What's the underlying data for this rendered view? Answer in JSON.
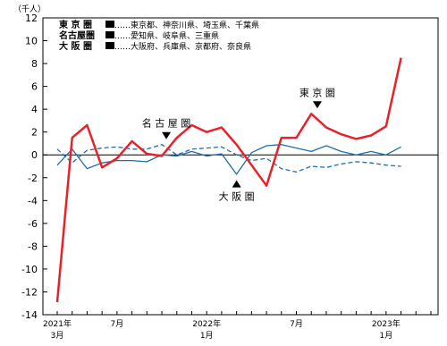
{
  "chart_data": {
    "type": "line",
    "unit_label": "（千人）",
    "x": [
      "2021-03",
      "2021-04",
      "2021-05",
      "2021-06",
      "2021-07",
      "2021-08",
      "2021-09",
      "2021-10",
      "2021-11",
      "2021-12",
      "2022-01",
      "2022-02",
      "2022-03",
      "2022-04",
      "2022-05",
      "2022-06",
      "2022-07",
      "2022-08",
      "2022-09",
      "2022-10",
      "2022-11",
      "2022-12",
      "2023-01",
      "2023-02",
      "2023-03",
      "2023-04"
    ],
    "x_ticks": [
      {
        "index": 0,
        "line1": "2021年",
        "line2": "3月"
      },
      {
        "index": 4,
        "line1": "7月",
        "line2": ""
      },
      {
        "index": 10,
        "line1": "2022年",
        "line2": "1月"
      },
      {
        "index": 16,
        "line1": "7月",
        "line2": ""
      },
      {
        "index": 22,
        "line1": "2023年",
        "line2": "1月"
      }
    ],
    "ylim": [
      -14,
      12
    ],
    "yticks": [
      12,
      10,
      8,
      6,
      4,
      2,
      0,
      -2,
      -4,
      -6,
      -8,
      -10,
      -12,
      -14
    ],
    "grid": false,
    "series": [
      {
        "name": "東京圏",
        "color": "#e8212a",
        "style": "solid",
        "width": 2.5,
        "values": [
          -12.9,
          1.5,
          2.6,
          -1.1,
          -0.3,
          1.2,
          0.1,
          -0.1,
          1.5,
          2.6,
          2.0,
          2.4,
          0.9,
          -0.9,
          -2.7,
          1.5,
          1.5,
          3.6,
          2.4,
          1.8,
          1.4,
          1.7,
          2.5,
          8.5,
          null,
          null
        ]
      },
      {
        "name": "名古屋圏",
        "color": "#1f6fa8",
        "style": "solid",
        "width": 1.3,
        "values": [
          -0.9,
          0.5,
          -1.2,
          -0.7,
          -0.5,
          -0.5,
          -0.6,
          0.0,
          -0.1,
          0.3,
          -0.1,
          0.1,
          -1.7,
          0.2,
          0.8,
          0.9,
          0.6,
          0.3,
          0.8,
          0.3,
          0.0,
          0.3,
          0.0,
          0.7,
          null,
          null
        ]
      },
      {
        "name": "大阪圏",
        "color": "#1f6fa8",
        "style": "dashed",
        "width": 1.3,
        "values": [
          0.5,
          -0.7,
          0.4,
          0.6,
          0.7,
          0.5,
          0.5,
          0.9,
          0.0,
          0.5,
          0.6,
          0.7,
          0.0,
          -0.5,
          -0.3,
          -1.2,
          -1.5,
          -1.0,
          -1.1,
          -0.8,
          -0.6,
          -0.7,
          -0.9,
          -1.0,
          null,
          null
        ]
      }
    ],
    "legend": [
      {
        "key": "東 京 圏",
        "desc": "……東京都、神奈川県、埼玉県、千葉県"
      },
      {
        "key": "名古屋圏",
        "desc": "……愛知県、岐阜県、三重県"
      },
      {
        "key": "大 阪 圏",
        "desc": "……大阪府、兵庫県、京都府、奈良県"
      }
    ],
    "legend_position": "top-left",
    "annotations": [
      {
        "label": "名 古 屋 圏",
        "x_index": 7.3,
        "y": 0.9,
        "marker": "down"
      },
      {
        "label": "大 阪 圏",
        "x_index": 12.0,
        "y": -1.6,
        "marker": "up"
      },
      {
        "label": "東 京 圏",
        "x_index": 17.4,
        "y": 3.6,
        "marker": "down"
      }
    ]
  }
}
